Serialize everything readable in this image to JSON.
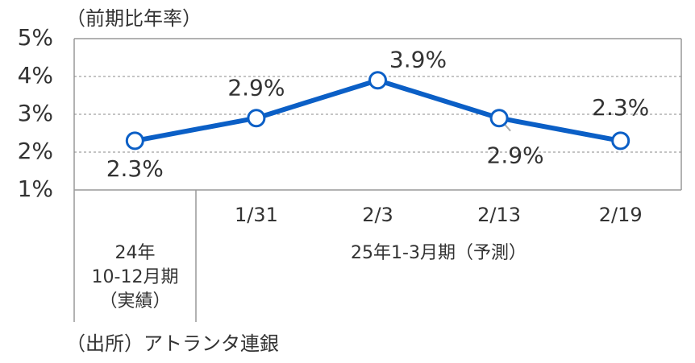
{
  "chart_data": {
    "type": "line",
    "y_axis_label": "（前期比年率）",
    "categories": [
      "24年\n10-12月期\n（実績）",
      "1/31",
      "2/3",
      "2/13",
      "2/19"
    ],
    "category_group": "25年1-3月期（予測）",
    "series": [
      {
        "color": "#0b5fc6",
        "values": [
          2.3,
          2.9,
          3.9,
          2.9,
          2.3
        ],
        "value_labels": [
          "2.3%",
          "2.9%",
          "3.9%",
          "2.9%",
          "2.3%"
        ]
      }
    ],
    "ylim": [
      1,
      5
    ],
    "yticks": [
      {
        "value": 1,
        "label": "1%"
      },
      {
        "value": 2,
        "label": "2%"
      },
      {
        "value": 3,
        "label": "3%"
      },
      {
        "value": 4,
        "label": "4%"
      },
      {
        "value": 5,
        "label": "5%"
      }
    ],
    "grid": true,
    "source": "（出所）アトランタ連銀"
  }
}
